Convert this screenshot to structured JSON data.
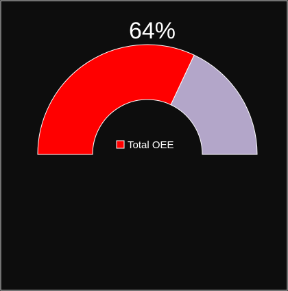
{
  "chart_data": {
    "type": "gauge",
    "title": "64%",
    "ylim": [
      0,
      100
    ],
    "track_color": "#b3a6c9",
    "series": [
      {
        "name": "Total OEE",
        "color": "#ff0000",
        "values": [
          64
        ]
      }
    ],
    "legend": "center"
  }
}
